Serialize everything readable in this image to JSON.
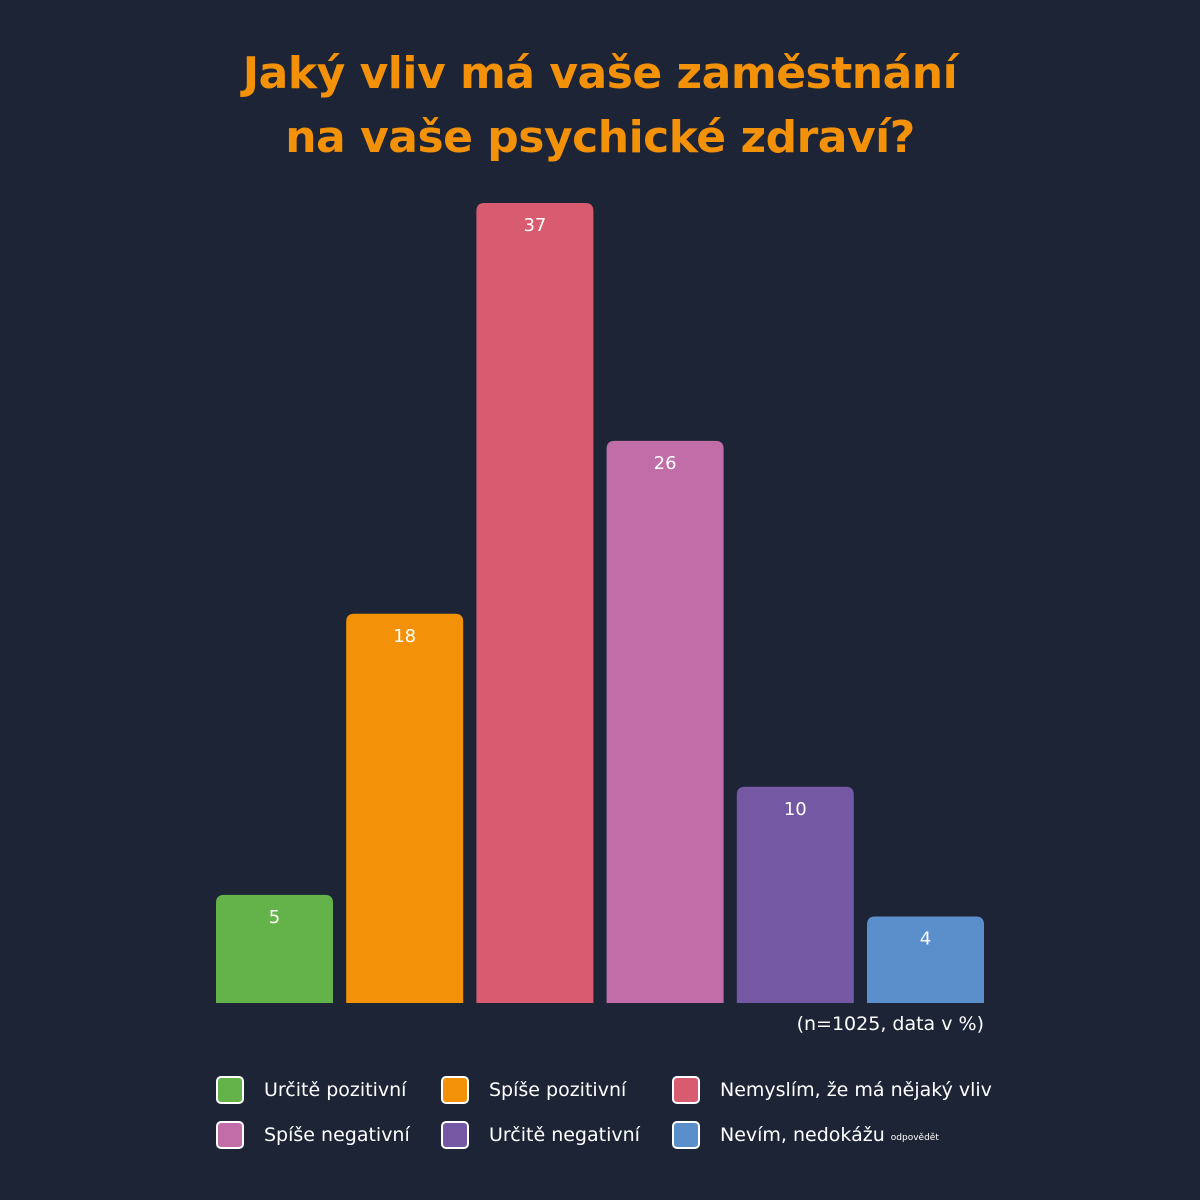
{
  "title_lines": [
    "Jaký vliv má vaše zaměstnání",
    "na vaše psychické zdraví?"
  ],
  "note": "(n=1025, data v %)",
  "legend": [
    {
      "label": "Určitě pozitivní",
      "small": ""
    },
    {
      "label": "Spíše pozitivní",
      "small": ""
    },
    {
      "label": "Nemyslím, že má nějaký vliv",
      "small": ""
    },
    {
      "label": "Spíše negativní",
      "small": ""
    },
    {
      "label": "Určitě negativní",
      "small": ""
    },
    {
      "label": "Nevím, nedokážu",
      "small": "odpovědět"
    }
  ],
  "colors": {
    "background": "#1c2436",
    "title": "#f39208",
    "text": "#ffffff"
  },
  "chart_data": {
    "type": "bar",
    "title": "Jaký vliv má vaše zaměstnání na vaše psychické zdraví?",
    "categories": [
      "Určitě pozitivní",
      "Spíše pozitivní",
      "Nemyslím, že má nějaký vliv",
      "Spíše negativní",
      "Určitě negativní",
      "Nevím, nedokážu odpovědět"
    ],
    "values": [
      5,
      18,
      37,
      26,
      10,
      4
    ],
    "colors": [
      "#64b34a",
      "#f39208",
      "#d85b70",
      "#c06da8",
      "#7458a3",
      "#5b8fcc"
    ],
    "unit": "%",
    "xlabel": "",
    "ylabel": "",
    "ylim": [
      0,
      37
    ],
    "grid": false,
    "legend_position": "bottom"
  }
}
